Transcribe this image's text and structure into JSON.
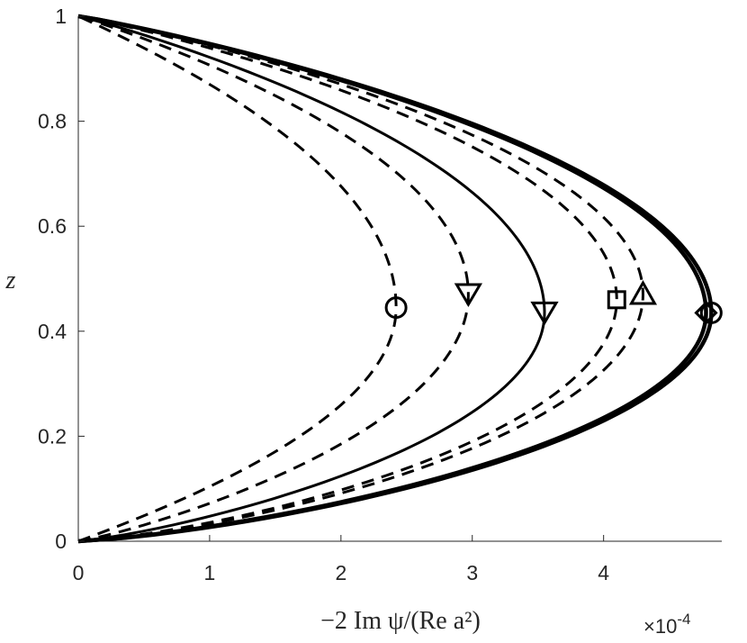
{
  "chart_data": {
    "type": "line",
    "xlabel": "−2 Im ψ/(Re a²)",
    "ylabel": "z",
    "x_exponent_label": "×10",
    "x_exponent_power": "-4",
    "xlim": [
      0,
      4.9
    ],
    "ylim": [
      0,
      1
    ],
    "xticks": [
      0,
      1,
      2,
      3,
      4
    ],
    "yticks": [
      0,
      0.2,
      0.4,
      0.6,
      0.8,
      1
    ],
    "xtick_labels": [
      "0",
      "1",
      "2",
      "3",
      "4"
    ],
    "ytick_labels": [
      "0",
      "0.2",
      "0.4",
      "0.6",
      "0.8",
      "1"
    ],
    "grid": false,
    "box": "left-bottom",
    "series": [
      {
        "style": "dashed",
        "width": 3,
        "marker": "circle",
        "peak": 2.42,
        "z_peak": 0.445,
        "skew": 0.0
      },
      {
        "style": "dashed",
        "width": 3,
        "marker": "triangle-down",
        "peak": 2.97,
        "z_peak": 0.47,
        "skew": 0.45
      },
      {
        "style": "solid",
        "width": 3,
        "marker": "triangle-down",
        "peak": 3.55,
        "z_peak": 0.435,
        "skew": 0.7
      },
      {
        "style": "dashed",
        "width": 3,
        "marker": "square",
        "peak": 4.1,
        "z_peak": 0.46,
        "skew": 1.0
      },
      {
        "style": "dashed",
        "width": 3,
        "marker": "triangle-up",
        "peak": 4.3,
        "z_peak": 0.47,
        "skew": 1.05
      },
      {
        "style": "solid",
        "width": 4.5,
        "marker": "circle",
        "peak": 4.82,
        "z_peak": 0.435,
        "skew": 1.0
      },
      {
        "style": "solid",
        "width": 4.5,
        "marker": "diamond",
        "peak": 4.78,
        "z_peak": 0.435,
        "skew": 0.95
      }
    ]
  }
}
